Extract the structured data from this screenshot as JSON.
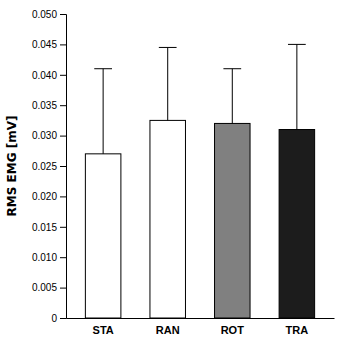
{
  "chart_data": {
    "type": "bar",
    "categories": [
      "STA",
      "RAN",
      "ROT",
      "TRA"
    ],
    "values": [
      0.027,
      0.0325,
      0.032,
      0.031
    ],
    "errors_upper": [
      0.014,
      0.012,
      0.009,
      0.014
    ],
    "colors": [
      "#ffffff",
      "#ffffff",
      "#808080",
      "#1c1c1c"
    ],
    "ylabel": "RMS EMG [mV]",
    "ylim": [
      0,
      0.05
    ],
    "yticks": [
      0,
      0.005,
      {
        "value": 0.01,
        "label": "0.010"
      },
      0.015,
      {
        "value": 0.02,
        "label": "0.020"
      },
      0.025,
      {
        "value": 0.03,
        "label": "0.030"
      },
      0.035,
      {
        "value": 0.04,
        "label": "0.040"
      },
      0.045,
      {
        "value": 0.05,
        "label": "0.050"
      }
    ],
    "grid": false
  }
}
